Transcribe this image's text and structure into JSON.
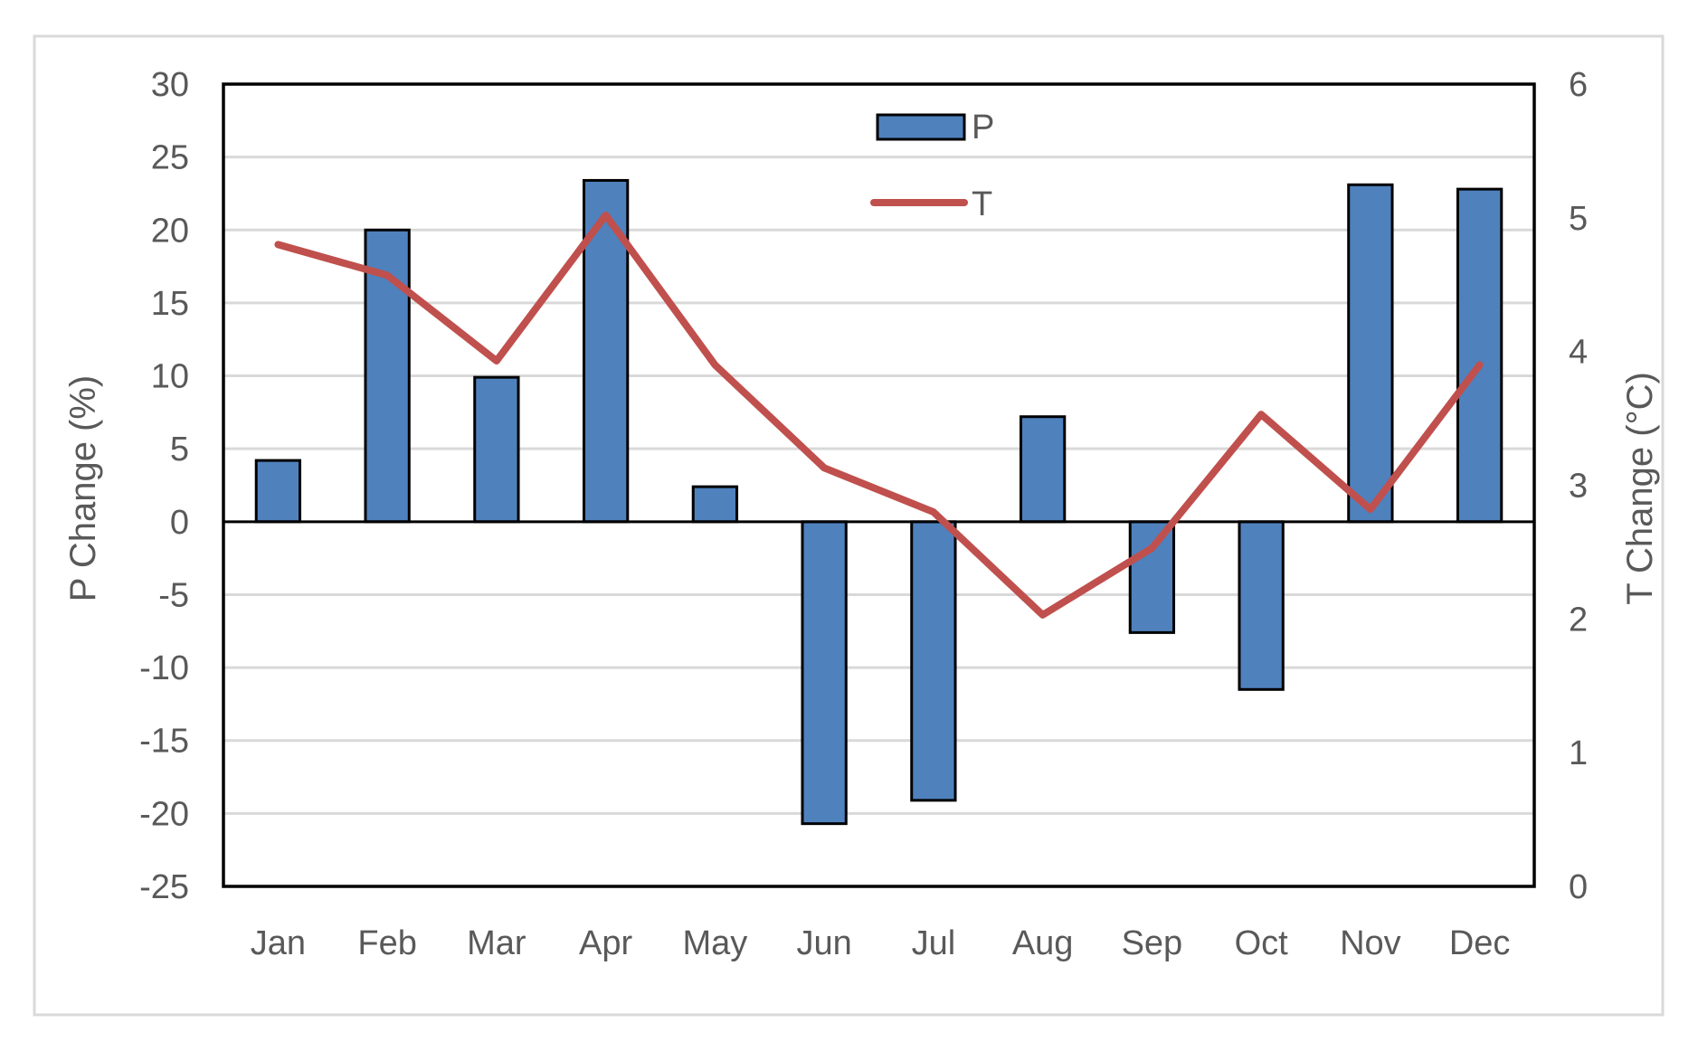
{
  "chart_data": {
    "type": "bar",
    "categories": [
      "Jan",
      "Feb",
      "Mar",
      "Apr",
      "May",
      "Jun",
      "Jul",
      "Aug",
      "Sep",
      "Oct",
      "Nov",
      "Dec"
    ],
    "series": [
      {
        "name": "P",
        "type": "bar",
        "axis": "left",
        "color": "#4F81BD",
        "values": [
          4.2,
          20.0,
          9.9,
          23.4,
          2.4,
          -20.7,
          -19.1,
          7.2,
          -7.6,
          -11.5,
          23.1,
          22.8
        ]
      },
      {
        "name": "T",
        "type": "line",
        "axis": "right",
        "color": "#C0504D",
        "values": [
          4.8,
          4.57,
          3.93,
          5.02,
          3.9,
          3.13,
          2.8,
          2.03,
          2.53,
          3.53,
          2.82,
          3.9
        ]
      }
    ],
    "ylabel_left": "P Change (%)",
    "ylabel_right": "T Change (°C)",
    "xlabel": "",
    "ylim_left": [
      -25,
      30
    ],
    "ylim_right": [
      0,
      6
    ],
    "yticks_left": [
      "30",
      "25",
      "20",
      "15",
      "10",
      "5",
      "0",
      "-5",
      "-10",
      "-15",
      "-20",
      "-25"
    ],
    "yticks_right": [
      "6",
      "5",
      "4",
      "3",
      "2",
      "1",
      "0"
    ],
    "grid": true,
    "legend": "top-center"
  }
}
